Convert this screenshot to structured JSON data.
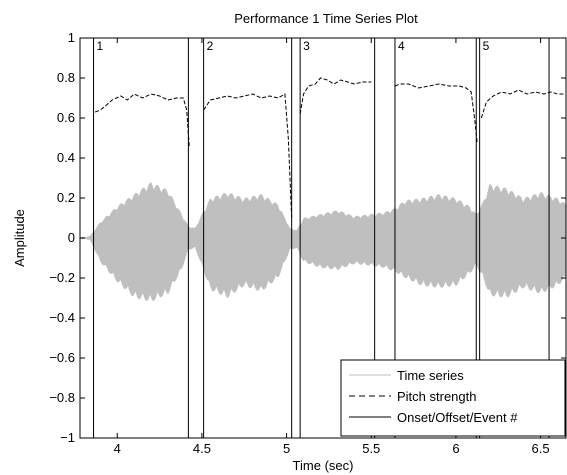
{
  "chart_data": {
    "type": "line",
    "title": "Performance 1 Time Series Plot",
    "xlabel": "Time (sec)",
    "ylabel": "Amplitude",
    "xlim": [
      3.78,
      6.65
    ],
    "ylim": [
      -1,
      1
    ],
    "x_ticks": [
      4,
      4.5,
      5,
      5.5,
      6,
      6.5
    ],
    "x_tick_labels": [
      "4",
      "4.5",
      "5",
      "5.5",
      "6",
      "6.5"
    ],
    "y_ticks": [
      -1,
      -0.8,
      -0.6,
      -0.4,
      -0.2,
      0,
      0.2,
      0.4,
      0.6,
      0.8,
      1
    ],
    "y_tick_labels": [
      "−1",
      "−0.8",
      "−0.6",
      "−0.4",
      "−0.2",
      "0",
      "0.2",
      "0.4",
      "0.6",
      "0.8",
      "1"
    ],
    "grid": false,
    "legend": {
      "placement": "bottom-right",
      "entries": [
        {
          "label": "Time series",
          "style": "solid",
          "color": "#bfbfbf"
        },
        {
          "label": "Pitch strength",
          "style": "dashed",
          "color": "#000000"
        },
        {
          "label": "Onset/Offset/Event #",
          "style": "solid",
          "color": "#000000"
        }
      ]
    },
    "events": [
      {
        "label": "1",
        "onset": 3.86,
        "offset": 4.42
      },
      {
        "label": "2",
        "onset": 4.51,
        "offset": 5.03
      },
      {
        "label": "3",
        "onset": 5.08,
        "offset": 5.52
      },
      {
        "label": "4",
        "onset": 5.64,
        "offset": 6.12
      },
      {
        "label": "5",
        "onset": 6.14,
        "offset": 6.55
      }
    ],
    "series": [
      {
        "name": "Time series",
        "color": "#bfbfbf",
        "envelope": {
          "x": [
            3.78,
            3.84,
            3.9,
            4.0,
            4.1,
            4.2,
            4.3,
            4.38,
            4.42,
            4.46,
            4.5,
            4.55,
            4.65,
            4.75,
            4.85,
            4.95,
            5.02,
            5.06,
            5.1,
            5.2,
            5.3,
            5.4,
            5.5,
            5.58,
            5.64,
            5.7,
            5.8,
            5.9,
            6.0,
            6.08,
            6.12,
            6.16,
            6.2,
            6.3,
            6.4,
            6.5,
            6.6,
            6.65
          ],
          "upper": [
            0.0,
            0.01,
            0.08,
            0.16,
            0.22,
            0.28,
            0.24,
            0.12,
            0.06,
            0.05,
            0.12,
            0.2,
            0.23,
            0.2,
            0.22,
            0.17,
            0.05,
            0.04,
            0.1,
            0.12,
            0.14,
            0.11,
            0.12,
            0.13,
            0.15,
            0.19,
            0.2,
            0.22,
            0.2,
            0.16,
            0.12,
            0.18,
            0.27,
            0.25,
            0.2,
            0.23,
            0.2,
            0.17
          ],
          "lower": [
            0.0,
            -0.01,
            -0.12,
            -0.22,
            -0.3,
            -0.32,
            -0.28,
            -0.16,
            -0.06,
            -0.05,
            -0.14,
            -0.26,
            -0.3,
            -0.24,
            -0.27,
            -0.2,
            -0.06,
            -0.05,
            -0.12,
            -0.15,
            -0.16,
            -0.13,
            -0.14,
            -0.15,
            -0.17,
            -0.2,
            -0.24,
            -0.25,
            -0.24,
            -0.18,
            -0.14,
            -0.2,
            -0.29,
            -0.3,
            -0.25,
            -0.28,
            -0.24,
            -0.2
          ]
        }
      },
      {
        "name": "Pitch strength",
        "color": "#000000",
        "style": "dashed",
        "segments": [
          {
            "x": [
              3.87,
              3.9,
              3.93,
              3.97,
              4.02,
              4.06,
              4.1,
              4.15,
              4.2,
              4.25,
              4.3,
              4.35,
              4.39,
              4.41,
              4.425
            ],
            "y": [
              0.63,
              0.64,
              0.66,
              0.69,
              0.71,
              0.69,
              0.72,
              0.7,
              0.72,
              0.71,
              0.69,
              0.7,
              0.7,
              0.64,
              0.46
            ]
          },
          {
            "x": [
              4.51,
              4.55,
              4.6,
              4.65,
              4.7,
              4.75,
              4.8,
              4.85,
              4.9,
              4.95,
              4.99,
              5.01,
              5.03
            ],
            "y": [
              0.64,
              0.69,
              0.7,
              0.71,
              0.7,
              0.71,
              0.72,
              0.7,
              0.71,
              0.7,
              0.72,
              0.5,
              0.1
            ]
          },
          {
            "x": [
              5.08,
              5.1,
              5.13,
              5.17,
              5.2,
              5.24,
              5.28,
              5.32,
              5.36,
              5.4,
              5.45,
              5.5
            ],
            "y": [
              0.62,
              0.72,
              0.76,
              0.77,
              0.8,
              0.79,
              0.77,
              0.79,
              0.78,
              0.77,
              0.78,
              0.78
            ]
          },
          {
            "x": [
              5.64,
              5.67,
              5.72,
              5.78,
              5.84,
              5.9,
              5.96,
              6.02,
              6.06,
              6.09,
              6.11,
              6.125
            ],
            "y": [
              0.76,
              0.77,
              0.77,
              0.75,
              0.76,
              0.77,
              0.76,
              0.76,
              0.75,
              0.73,
              0.6,
              0.48
            ]
          },
          {
            "x": [
              6.15,
              6.18,
              6.22,
              6.27,
              6.32,
              6.37,
              6.42,
              6.47,
              6.52,
              6.56,
              6.6,
              6.64
            ],
            "y": [
              0.6,
              0.68,
              0.71,
              0.73,
              0.72,
              0.74,
              0.72,
              0.73,
              0.72,
              0.73,
              0.72,
              0.72
            ]
          }
        ]
      }
    ]
  }
}
